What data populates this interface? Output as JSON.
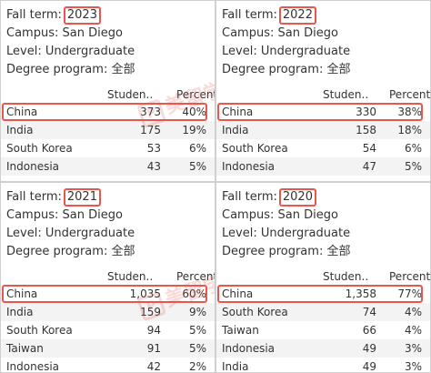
{
  "labels": {
    "fall_term": "Fall term:",
    "campus": "Campus: San Diego",
    "level": "Level: Undergraduate",
    "degree_program": "Degree program: 全部",
    "col_students": "Studen..",
    "col_percent": "Percent"
  },
  "watermark": {
    "text": "美留学"
  },
  "colors": {
    "highlight": "#e8564e",
    "watermark": "#e8564e"
  },
  "panels": [
    {
      "term": "2023",
      "rows": [
        {
          "country": "China",
          "students": "373",
          "percent": "40%",
          "highlight": true
        },
        {
          "country": "India",
          "students": "175",
          "percent": "19%"
        },
        {
          "country": "South Korea",
          "students": "53",
          "percent": "6%"
        },
        {
          "country": "Indonesia",
          "students": "43",
          "percent": "5%"
        }
      ]
    },
    {
      "term": "2022",
      "rows": [
        {
          "country": "China",
          "students": "330",
          "percent": "38%",
          "highlight": true
        },
        {
          "country": "India",
          "students": "158",
          "percent": "18%"
        },
        {
          "country": "South Korea",
          "students": "54",
          "percent": "6%"
        },
        {
          "country": "Indonesia",
          "students": "47",
          "percent": "5%"
        }
      ]
    },
    {
      "term": "2021",
      "rows": [
        {
          "country": "China",
          "students": "1,035",
          "percent": "60%",
          "highlight": true
        },
        {
          "country": "India",
          "students": "159",
          "percent": "9%"
        },
        {
          "country": "South Korea",
          "students": "94",
          "percent": "5%"
        },
        {
          "country": "Taiwan",
          "students": "91",
          "percent": "5%"
        },
        {
          "country": "Indonesia",
          "students": "42",
          "percent": "2%"
        }
      ]
    },
    {
      "term": "2020",
      "rows": [
        {
          "country": "China",
          "students": "1,358",
          "percent": "77%",
          "highlight": true
        },
        {
          "country": "South Korea",
          "students": "74",
          "percent": "4%"
        },
        {
          "country": "Taiwan",
          "students": "66",
          "percent": "4%"
        },
        {
          "country": "Indonesia",
          "students": "49",
          "percent": "3%"
        },
        {
          "country": "India",
          "students": "49",
          "percent": "3%"
        }
      ]
    }
  ]
}
